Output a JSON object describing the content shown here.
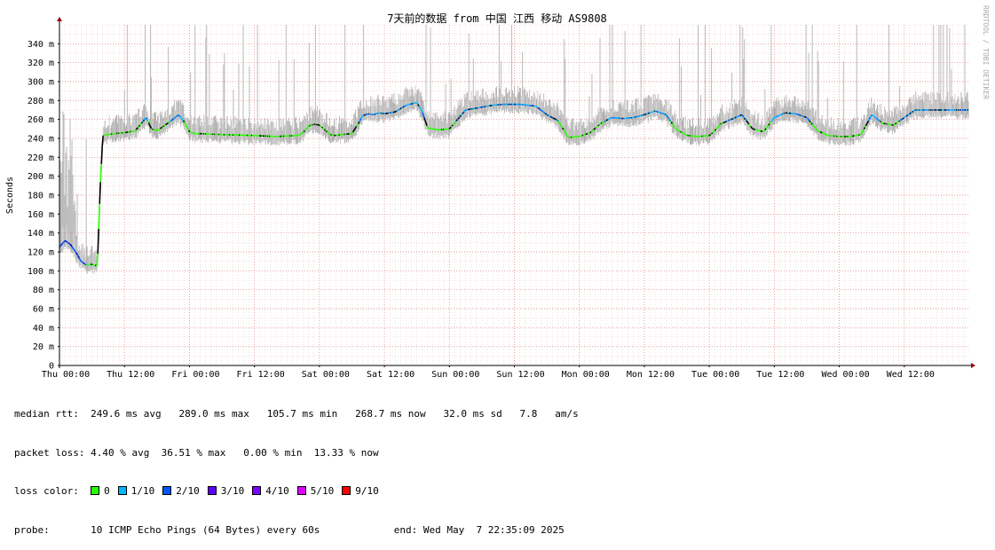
{
  "chart_data": {
    "type": "line",
    "title": "7天前的数据 from 中国 江西 移动 AS9808",
    "ylabel": "Seconds",
    "xlabel": "",
    "ylim": [
      0,
      360
    ],
    "y_ticks": [
      "0",
      "20 m",
      "40 m",
      "60 m",
      "80 m",
      "100 m",
      "120 m",
      "140 m",
      "160 m",
      "180 m",
      "200 m",
      "220 m",
      "240 m",
      "260 m",
      "280 m",
      "300 m",
      "320 m",
      "340 m"
    ],
    "x_ticks": [
      "Thu 00:00",
      "Thu 12:00",
      "Fri 00:00",
      "Fri 12:00",
      "Sat 00:00",
      "Sat 12:00",
      "Sun 00:00",
      "Sun 12:00",
      "Mon 00:00",
      "Mon 12:00",
      "Tue 00:00",
      "Tue 12:00",
      "Wed 00:00",
      "Wed 12:00"
    ],
    "x_range_hours": [
      0,
      168
    ],
    "grid": true,
    "series": [
      {
        "name": "median rtt",
        "unit": "ms",
        "hours": [
          0,
          1,
          2,
          3,
          4,
          5,
          6,
          7,
          7.5,
          8,
          9,
          10,
          12,
          14,
          15,
          16,
          17,
          18,
          20,
          22,
          23,
          24,
          25,
          26,
          30,
          36,
          40,
          44,
          45,
          46,
          47,
          48,
          50,
          51,
          52,
          54,
          55,
          56,
          57,
          58,
          59,
          60,
          62,
          64,
          66,
          67,
          68,
          69,
          70,
          72,
          75,
          78,
          80,
          82,
          85,
          88,
          90,
          92,
          94,
          96,
          97,
          98,
          100,
          102,
          104,
          106,
          108,
          110,
          112,
          114,
          116,
          118,
          120,
          121,
          122,
          124,
          126,
          128,
          130,
          132,
          134,
          136,
          138,
          140,
          142,
          144,
          146,
          148,
          150,
          152,
          154,
          156,
          158,
          160,
          162,
          164,
          166,
          168
        ],
        "values": [
          125,
          132,
          128,
          120,
          110,
          106,
          107,
          105,
          185,
          243,
          244,
          245,
          246,
          248,
          255,
          262,
          250,
          248,
          256,
          265,
          258,
          247,
          245,
          245,
          244,
          243,
          242,
          243,
          246,
          253,
          255,
          254,
          244,
          243,
          244,
          245,
          254,
          264,
          266,
          265,
          267,
          266,
          268,
          275,
          278,
          268,
          251,
          250,
          249,
          250,
          270,
          273,
          275,
          276,
          276,
          274,
          265,
          259,
          241,
          242,
          244,
          246,
          256,
          262,
          261,
          262,
          265,
          269,
          265,
          249,
          243,
          242,
          243,
          248,
          255,
          260,
          265,
          250,
          247,
          262,
          267,
          266,
          262,
          248,
          243,
          242,
          242,
          244,
          265,
          256,
          254,
          262,
          270,
          270,
          270,
          270,
          270,
          270
        ]
      }
    ],
    "loss_colors": [
      {
        "label": "0",
        "color": "#26ff00"
      },
      {
        "label": "1/10",
        "color": "#00b8ff"
      },
      {
        "label": "2/10",
        "color": "#0059ff"
      },
      {
        "label": "3/10",
        "color": "#5e00ff"
      },
      {
        "label": "4/10",
        "color": "#7e00ff"
      },
      {
        "label": "5/10",
        "color": "#dd00ff"
      },
      {
        "label": "9/10",
        "color": "#ff0000"
      }
    ],
    "grid_color_minor": "#f3c8c8",
    "grid_color_major": "#e08080",
    "axis_color": "#000000",
    "arrow_color": "#990000"
  },
  "watermark": "RRDTOOL / TOBI OETIKER",
  "stats": {
    "rtt_label": "median rtt:",
    "rtt_values": "249.6 ms avg   289.0 ms max   105.7 ms min   268.7 ms now   32.0 ms sd   7.8   am/s",
    "loss_label": "packet loss:",
    "loss_values": "4.40 % avg  36.51 % max   0.00 % min  13.33 % now",
    "color_label": "loss color:",
    "probe_label": "probe:",
    "probe_value": "10 ICMP Echo Pings (64 Bytes) every 60s",
    "end_label": "end: Wed May  7 22:35:09 2025"
  }
}
